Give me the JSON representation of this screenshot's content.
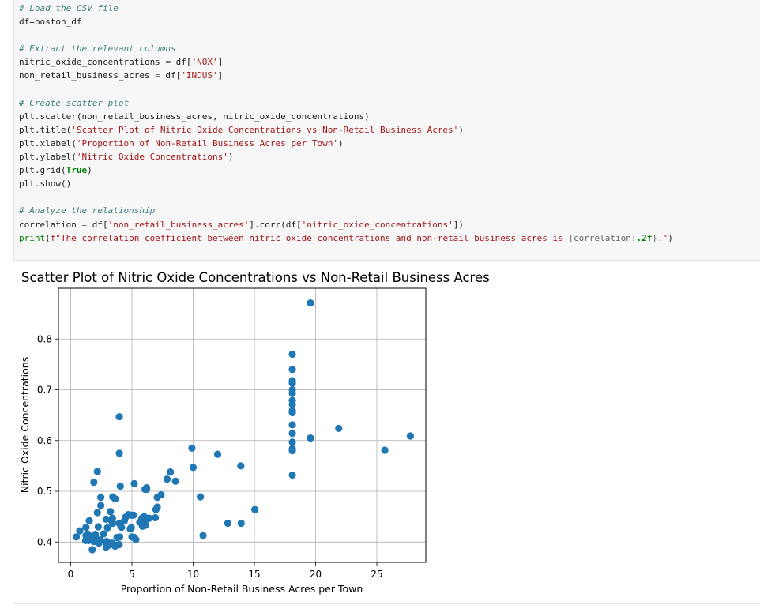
{
  "code_cell": {
    "lines": [
      [
        {
          "t": "# Load the CSV file",
          "c": "cm"
        }
      ],
      [
        {
          "t": "df=boston_df"
        }
      ],
      [],
      [
        {
          "t": "# Extract the relevant columns",
          "c": "cm"
        }
      ],
      [
        {
          "t": "nitric_oxide_concentrations "
        },
        {
          "t": "=",
          "c": "op"
        },
        {
          "t": " df["
        },
        {
          "t": "'NOX'",
          "c": "str"
        },
        {
          "t": "]"
        }
      ],
      [
        {
          "t": "non_retail_business_acres "
        },
        {
          "t": "=",
          "c": "op"
        },
        {
          "t": " df["
        },
        {
          "t": "'INDUS'",
          "c": "str"
        },
        {
          "t": "]"
        }
      ],
      [],
      [
        {
          "t": "# Create scatter plot",
          "c": "cm"
        }
      ],
      [
        {
          "t": "plt.scatter(non_retail_business_acres, nitric_oxide_concentrations)"
        }
      ],
      [
        {
          "t": "plt.title("
        },
        {
          "t": "'Scatter Plot of Nitric Oxide Concentrations vs Non-Retail Business Acres'",
          "c": "str"
        },
        {
          "t": ")"
        }
      ],
      [
        {
          "t": "plt.xlabel("
        },
        {
          "t": "'Proportion of Non-Retail Business Acres per Town'",
          "c": "str"
        },
        {
          "t": ")"
        }
      ],
      [
        {
          "t": "plt.ylabel("
        },
        {
          "t": "'Nitric Oxide Concentrations'",
          "c": "str"
        },
        {
          "t": ")"
        }
      ],
      [
        {
          "t": "plt.grid("
        },
        {
          "t": "True",
          "c": "kw"
        },
        {
          "t": ")"
        }
      ],
      [
        {
          "t": "plt.show()"
        }
      ],
      [],
      [
        {
          "t": "# Analyze the relationship",
          "c": "cm"
        }
      ],
      [
        {
          "t": "correlation "
        },
        {
          "t": "=",
          "c": "op"
        },
        {
          "t": " df["
        },
        {
          "t": "'non_retail_business_acres'",
          "c": "str"
        },
        {
          "t": "].corr(df["
        },
        {
          "t": "'nitric_oxide_concentrations'",
          "c": "str"
        },
        {
          "t": "])"
        }
      ],
      [
        {
          "t": "print",
          "c": "bi"
        },
        {
          "t": "("
        },
        {
          "t": "f\"The correlation coefficient between nitric oxide concentrations and non-retail business acres is ",
          "c": "str"
        },
        {
          "t": "{correlation:",
          "c": "op"
        },
        {
          "t": ".2f",
          "c": "kw"
        },
        {
          "t": "}",
          "c": "op"
        },
        {
          "t": ".\"",
          "c": "str"
        },
        {
          "t": ")"
        }
      ]
    ]
  },
  "chart_data": {
    "type": "scatter",
    "title": "Scatter Plot of Nitric Oxide Concentrations vs Non-Retail Business Acres",
    "xlabel": "Proportion of Non-Retail Business Acres per Town",
    "ylabel": "Nitric Oxide Concentrations",
    "xlim": [
      -1.0,
      29.0
    ],
    "ylim": [
      0.36,
      0.9
    ],
    "xticks": [
      0,
      5,
      10,
      15,
      20,
      25
    ],
    "yticks": [
      0.4,
      0.5,
      0.6,
      0.7,
      0.8
    ],
    "xtick_labels": [
      "0",
      "5",
      "10",
      "15",
      "20",
      "25"
    ],
    "ytick_labels": [
      "0.4",
      "0.5",
      "0.6",
      "0.7",
      "0.8"
    ],
    "grid": true,
    "marker_color": "#1f77b4",
    "x": [
      19.58,
      18.1,
      18.1,
      18.1,
      18.1,
      18.1,
      18.1,
      18.1,
      18.1,
      18.1,
      18.1,
      18.1,
      18.1,
      18.1,
      18.1,
      18.1,
      18.1,
      21.89,
      19.58,
      27.74,
      25.65,
      3.97,
      3.97,
      9.9,
      12.0,
      10.0,
      13.89,
      2.18,
      1.89,
      5.19,
      4.05,
      6.07,
      7.07,
      8.14,
      7.87,
      8.56,
      6.2,
      6.2,
      10.59,
      15.04,
      2.46,
      3.44,
      3.64,
      3.97,
      1.52,
      2.18,
      2.46,
      2.89,
      3.44,
      4.49,
      4.95,
      5.64,
      5.86,
      6.91,
      7.38,
      6.96,
      7.07,
      12.83,
      13.92,
      10.81,
      0.74,
      1.25,
      1.25,
      1.38,
      1.69,
      1.91,
      2.01,
      2.02,
      2.24,
      2.31,
      2.68,
      2.97,
      3.0,
      3.24,
      3.33,
      3.41,
      3.78,
      4.15,
      4.39,
      4.86,
      5.13,
      5.32,
      5.96,
      6.06,
      6.41,
      1.22,
      1.47,
      2.03,
      2.93,
      3.37,
      3.75,
      4.0,
      4.93,
      5.19,
      0.46,
      1.32,
      2.95,
      3.15,
      1.76,
      2.25,
      2.89,
      5.0,
      6.0,
      4.1,
      6.09,
      3.62,
      1.89,
      2.41,
      3.96,
      4.95,
      4.7,
      5.81
    ],
    "y": [
      0.871,
      0.77,
      0.74,
      0.718,
      0.713,
      0.7,
      0.693,
      0.679,
      0.671,
      0.659,
      0.655,
      0.631,
      0.614,
      0.597,
      0.584,
      0.58,
      0.532,
      0.624,
      0.605,
      0.609,
      0.581,
      0.647,
      0.575,
      0.585,
      0.573,
      0.547,
      0.55,
      0.539,
      0.518,
      0.515,
      0.51,
      0.504,
      0.488,
      0.538,
      0.524,
      0.52,
      0.507,
      0.504,
      0.489,
      0.464,
      0.488,
      0.489,
      0.485,
      0.437,
      0.442,
      0.458,
      0.472,
      0.445,
      0.437,
      0.449,
      0.453,
      0.439,
      0.431,
      0.448,
      0.493,
      0.464,
      0.469,
      0.437,
      0.437,
      0.413,
      0.422,
      0.429,
      0.413,
      0.416,
      0.411,
      0.413,
      0.415,
      0.41,
      0.4,
      0.398,
      0.416,
      0.4,
      0.428,
      0.46,
      0.442,
      0.447,
      0.409,
      0.429,
      0.442,
      0.426,
      0.453,
      0.405,
      0.437,
      0.438,
      0.447,
      0.403,
      0.403,
      0.402,
      0.401,
      0.398,
      0.394,
      0.41,
      0.428,
      0.409,
      0.41,
      0.411,
      0.398,
      0.394,
      0.385,
      0.43,
      0.39,
      0.41,
      0.45,
      0.43,
      0.433,
      0.392,
      0.401,
      0.404,
      0.395,
      0.428,
      0.454,
      0.447
    ]
  }
}
